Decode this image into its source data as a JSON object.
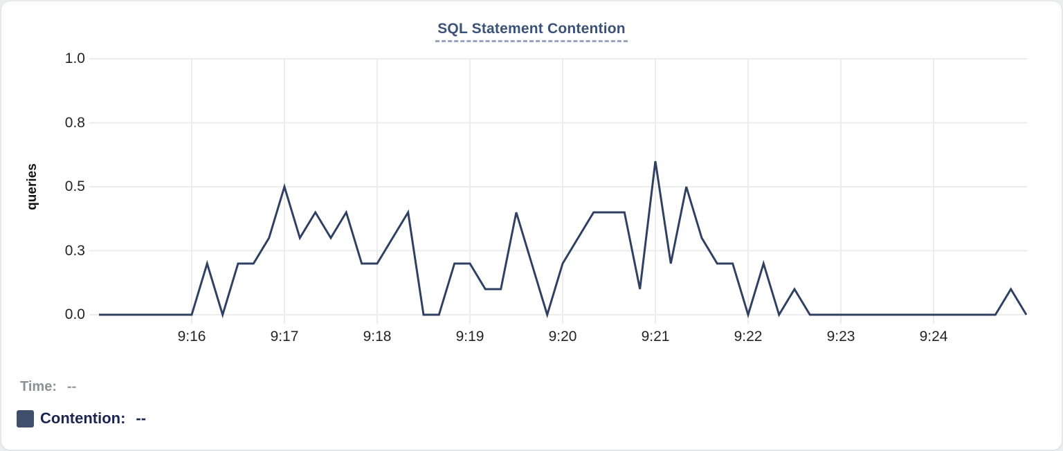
{
  "panel": {
    "title": "SQL Statement Contention",
    "title_color": "#3b5278"
  },
  "chart_data": {
    "type": "line",
    "title": "SQL Statement Contention",
    "xlabel": "",
    "ylabel": "queries",
    "ylim": [
      0,
      1.0
    ],
    "grid": true,
    "legend_position": "bottom-left",
    "x_start": "9:15:00",
    "x_end": "9:25:00",
    "duration_seconds": 600,
    "sample_interval_seconds": 10,
    "line_color": "#2e4163",
    "grid_color": "#ececee",
    "y_ticks": [
      {
        "value": 0,
        "label": "0.0"
      },
      {
        "value": 0.25,
        "label": "0.3"
      },
      {
        "value": 0.5,
        "label": "0.5"
      },
      {
        "value": 0.75,
        "label": "0.8"
      },
      {
        "value": 1.0,
        "label": "1.0"
      }
    ],
    "x_ticks": [
      {
        "offset_minutes": 1,
        "label": "9:16"
      },
      {
        "offset_minutes": 2,
        "label": "9:17"
      },
      {
        "offset_minutes": 3,
        "label": "9:18"
      },
      {
        "offset_minutes": 4,
        "label": "9:19"
      },
      {
        "offset_minutes": 5,
        "label": "9:20"
      },
      {
        "offset_minutes": 6,
        "label": "9:21"
      },
      {
        "offset_minutes": 7,
        "label": "9:22"
      },
      {
        "offset_minutes": 8,
        "label": "9:23"
      },
      {
        "offset_minutes": 9,
        "label": "9:24"
      }
    ],
    "series": [
      {
        "name": "Contention",
        "unit": "queries",
        "values": [
          0,
          0,
          0,
          0,
          0,
          0,
          0,
          0.2,
          0,
          0.2,
          0.2,
          0.3,
          0.5,
          0.3,
          0.4,
          0.3,
          0.4,
          0.2,
          0.2,
          0.3,
          0.4,
          0,
          0,
          0.2,
          0.2,
          0.1,
          0.1,
          0.4,
          0.2,
          0,
          0.2,
          0.3,
          0.4,
          0.4,
          0.4,
          0.1,
          0.6,
          0.2,
          0.5,
          0.3,
          0.2,
          0.2,
          0,
          0.2,
          0,
          0.1,
          0,
          0,
          0,
          0,
          0,
          0,
          0,
          0,
          0,
          0,
          0,
          0,
          0,
          0.1,
          0
        ]
      }
    ]
  },
  "legend": {
    "time_label": "Time:",
    "time_value": "--",
    "contention_label": "Contention:",
    "contention_value": "--",
    "swatch_color": "#3f4f6b"
  }
}
